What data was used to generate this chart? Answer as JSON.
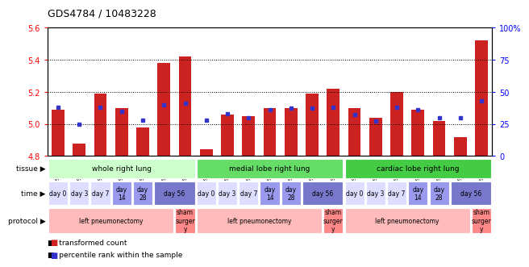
{
  "title": "GDS4784 / 10483228",
  "samples": [
    "GSM979804",
    "GSM979805",
    "GSM979806",
    "GSM979807",
    "GSM979808",
    "GSM979809",
    "GSM979810",
    "GSM979790",
    "GSM979791",
    "GSM979792",
    "GSM979793",
    "GSM979794",
    "GSM979795",
    "GSM979796",
    "GSM979797",
    "GSM979798",
    "GSM979799",
    "GSM979800",
    "GSM979801",
    "GSM979802",
    "GSM979803"
  ],
  "red_values": [
    5.09,
    4.88,
    5.19,
    5.1,
    4.98,
    5.38,
    5.42,
    4.84,
    5.06,
    5.05,
    5.1,
    5.1,
    5.19,
    5.22,
    5.1,
    5.04,
    5.2,
    5.09,
    5.02,
    4.92,
    5.52
  ],
  "blue_percentiles": [
    38,
    25,
    38,
    35,
    28,
    40,
    41,
    28,
    33,
    30,
    36,
    37,
    37,
    38,
    32,
    27,
    38,
    36,
    30,
    30,
    43
  ],
  "ylim_left": [
    4.8,
    5.6
  ],
  "ylim_right": [
    0,
    100
  ],
  "yticks_left": [
    4.8,
    5.0,
    5.2,
    5.4,
    5.6
  ],
  "yticks_right": [
    0,
    25,
    50,
    75,
    100
  ],
  "ytick_labels_right": [
    "0",
    "25",
    "50",
    "75",
    "100%"
  ],
  "bar_color": "#cc2222",
  "dot_color": "#3333cc",
  "bar_bottom": 4.8,
  "tissue_groups": [
    {
      "label": "whole right lung",
      "start": 0,
      "end": 6,
      "color": "#ccffcc"
    },
    {
      "label": "medial lobe right lung",
      "start": 7,
      "end": 13,
      "color": "#66dd66"
    },
    {
      "label": "cardiac lobe right lung",
      "start": 14,
      "end": 20,
      "color": "#44cc44"
    }
  ],
  "time_groups": [
    {
      "label": "day 0",
      "start": 0,
      "end": 0,
      "color": "#ddddff"
    },
    {
      "label": "day 3",
      "start": 1,
      "end": 1,
      "color": "#ddddff"
    },
    {
      "label": "day 7",
      "start": 2,
      "end": 2,
      "color": "#ddddff"
    },
    {
      "label": "day\n14",
      "start": 3,
      "end": 3,
      "color": "#9999ee"
    },
    {
      "label": "day\n28",
      "start": 4,
      "end": 4,
      "color": "#9999ee"
    },
    {
      "label": "day 56",
      "start": 5,
      "end": 6,
      "color": "#7777cc"
    },
    {
      "label": "day 0",
      "start": 7,
      "end": 7,
      "color": "#ddddff"
    },
    {
      "label": "day 3",
      "start": 8,
      "end": 8,
      "color": "#ddddff"
    },
    {
      "label": "day 7",
      "start": 9,
      "end": 9,
      "color": "#ddddff"
    },
    {
      "label": "day\n14",
      "start": 10,
      "end": 10,
      "color": "#9999ee"
    },
    {
      "label": "day\n28",
      "start": 11,
      "end": 11,
      "color": "#9999ee"
    },
    {
      "label": "day 56",
      "start": 12,
      "end": 13,
      "color": "#7777cc"
    },
    {
      "label": "day 0",
      "start": 14,
      "end": 14,
      "color": "#ddddff"
    },
    {
      "label": "day 3",
      "start": 15,
      "end": 15,
      "color": "#ddddff"
    },
    {
      "label": "day 7",
      "start": 16,
      "end": 16,
      "color": "#ddddff"
    },
    {
      "label": "day\n14",
      "start": 17,
      "end": 17,
      "color": "#9999ee"
    },
    {
      "label": "day\n28",
      "start": 18,
      "end": 18,
      "color": "#9999ee"
    },
    {
      "label": "day 56",
      "start": 19,
      "end": 20,
      "color": "#7777cc"
    }
  ],
  "protocol_groups": [
    {
      "label": "left pneumonectomy",
      "start": 0,
      "end": 5,
      "color": "#ffbbbb"
    },
    {
      "label": "sham\nsurger\ny",
      "start": 6,
      "end": 6,
      "color": "#ff8888"
    },
    {
      "label": "left pneumonectomy",
      "start": 7,
      "end": 12,
      "color": "#ffbbbb"
    },
    {
      "label": "sham\nsurger\ny",
      "start": 13,
      "end": 13,
      "color": "#ff8888"
    },
    {
      "label": "left pneumonectomy",
      "start": 14,
      "end": 19,
      "color": "#ffbbbb"
    },
    {
      "label": "sham\nsurger\ny",
      "start": 20,
      "end": 20,
      "color": "#ff8888"
    }
  ],
  "background_color": "#ffffff"
}
